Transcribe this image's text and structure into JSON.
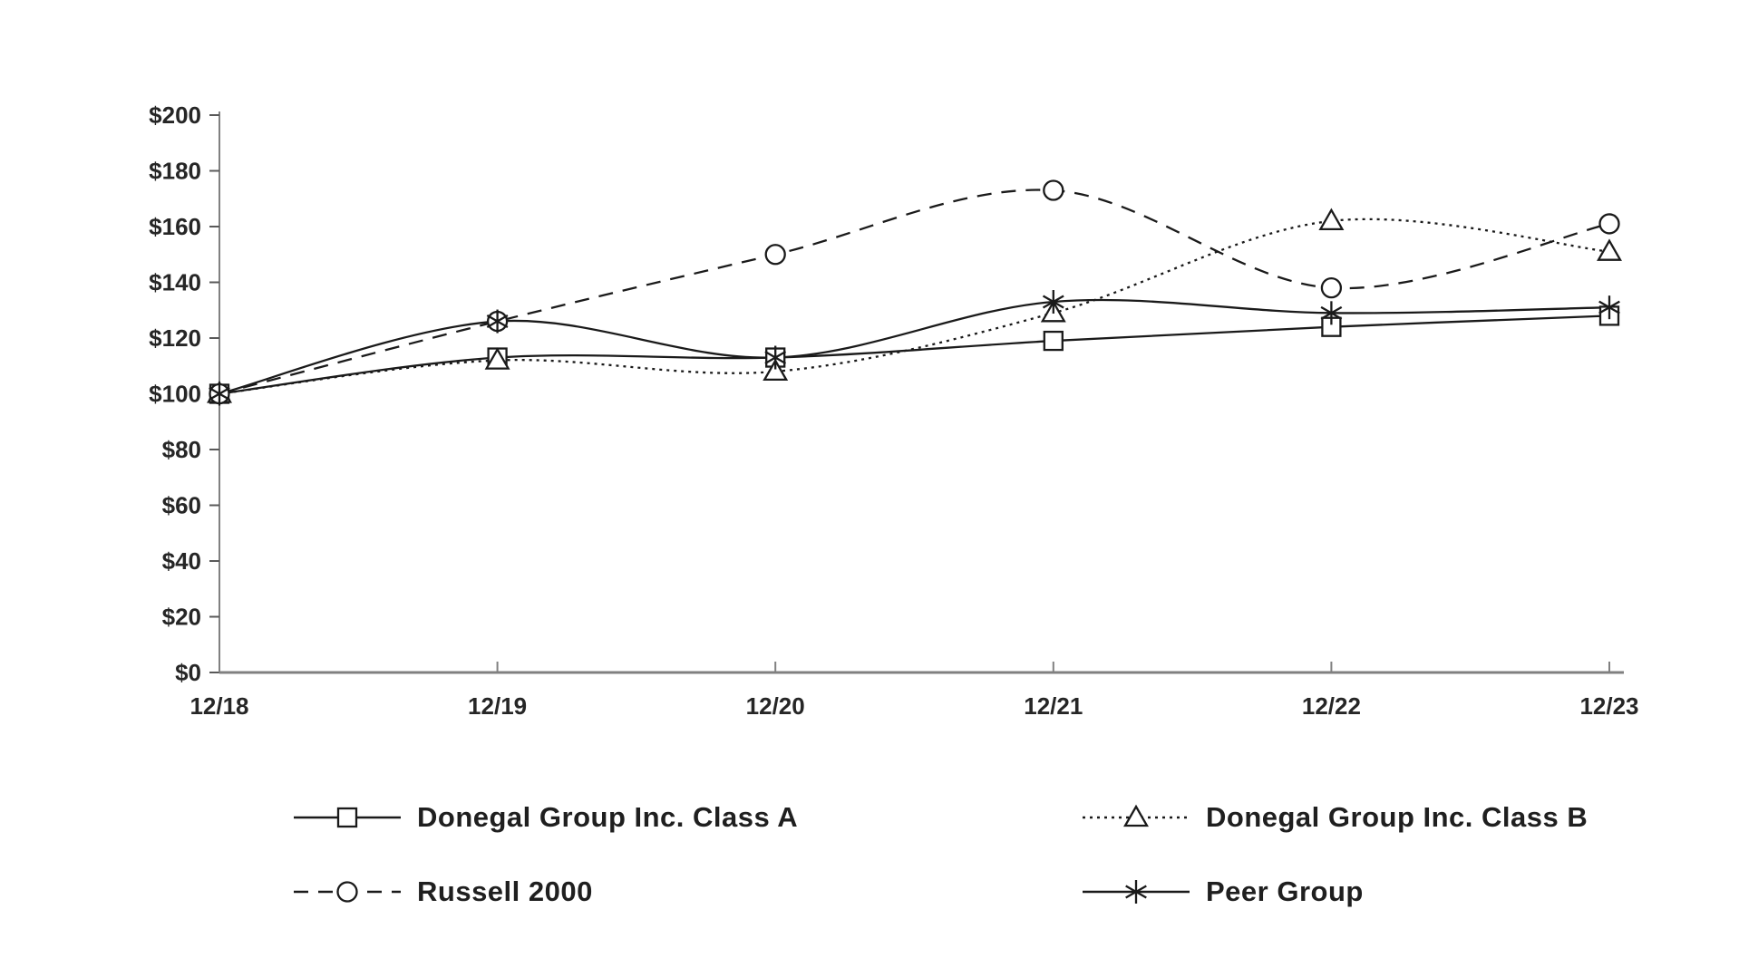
{
  "chart_data": {
    "type": "line",
    "title": "",
    "x": [
      "12/18",
      "12/19",
      "12/20",
      "12/21",
      "12/22",
      "12/23"
    ],
    "y_ticks": [
      "$200",
      "$180",
      "$160",
      "$140",
      "$120",
      "$100",
      "$80",
      "$60",
      "$40",
      "$20",
      "$0"
    ],
    "ymin": 0,
    "ymax": 200,
    "ystep": 20,
    "grid": false,
    "legend_position": "bottom-two-columns",
    "series": [
      {
        "id": "donegal-class-a",
        "name": "Donegal Group Inc. Class A",
        "marker": "square",
        "line": "solid",
        "values": [
          100,
          113,
          113,
          119,
          124,
          128
        ]
      },
      {
        "id": "donegal-class-b",
        "name": "Donegal Group Inc. Class B",
        "marker": "triangle",
        "line": "dotted",
        "values": [
          100,
          112,
          108,
          129,
          162,
          151
        ]
      },
      {
        "id": "russell-2000",
        "name": "Russell 2000",
        "marker": "circle",
        "line": "dashed",
        "values": [
          100,
          126,
          150,
          173,
          138,
          161
        ]
      },
      {
        "id": "peer-group",
        "name": "Peer Group",
        "marker": "asterisk",
        "line": "solid",
        "values": [
          100,
          126,
          113,
          133,
          129,
          131
        ]
      }
    ],
    "colors": {
      "series": "#1a1a1a",
      "axis": "#808080",
      "tick": "#595959",
      "text": "#262626",
      "marker_fill": "#ffffff",
      "background": "#ffffff"
    }
  }
}
